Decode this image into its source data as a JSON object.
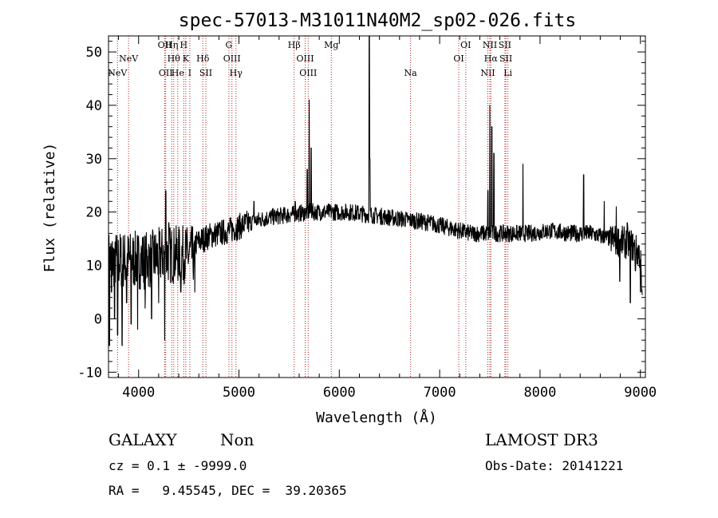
{
  "chart_data": {
    "type": "line",
    "title": "spec-57013-M31011N40M2_sp02-026.fits",
    "xlabel": "Wavelength (Å)",
    "ylabel": "Flux (relative)",
    "xlim": [
      3700,
      9050
    ],
    "ylim": [
      -11,
      53
    ],
    "xticks": [
      4000,
      5000,
      6000,
      7000,
      8000,
      9000
    ],
    "yticks": [
      -10,
      0,
      10,
      20,
      30,
      40,
      50
    ],
    "line_color": "#000000",
    "marker_color": "#b22222",
    "continuum": [
      [
        3700,
        11
      ],
      [
        3800,
        11
      ],
      [
        3950,
        11
      ],
      [
        4100,
        11
      ],
      [
        4250,
        12
      ],
      [
        4400,
        12
      ],
      [
        4550,
        12
      ],
      [
        4560,
        14
      ],
      [
        4700,
        15.5
      ],
      [
        4900,
        16.5
      ],
      [
        5100,
        18
      ],
      [
        5300,
        19
      ],
      [
        5500,
        19.5
      ],
      [
        5700,
        20
      ],
      [
        5900,
        20
      ],
      [
        6100,
        20
      ],
      [
        6300,
        19.5
      ],
      [
        6500,
        19
      ],
      [
        6700,
        18.5
      ],
      [
        6900,
        18
      ],
      [
        7100,
        17
      ],
      [
        7300,
        16
      ],
      [
        7450,
        16
      ],
      [
        7700,
        16
      ],
      [
        7900,
        16
      ],
      [
        8100,
        16.5
      ],
      [
        8300,
        16
      ],
      [
        8500,
        16
      ],
      [
        8700,
        15
      ],
      [
        8900,
        14
      ],
      [
        9000,
        12
      ],
      [
        9020,
        1
      ]
    ],
    "features": [
      [
        3710,
        -5
      ],
      [
        3730,
        5
      ],
      [
        3760,
        0
      ],
      [
        3790,
        -3
      ],
      [
        3835,
        -5
      ],
      [
        3880,
        3
      ],
      [
        3925,
        -1
      ],
      [
        3990,
        -2
      ],
      [
        4065,
        2
      ],
      [
        4130,
        0
      ],
      [
        4200,
        3
      ],
      [
        4260,
        -4
      ],
      [
        4270,
        24
      ],
      [
        4300,
        18
      ],
      [
        4420,
        5
      ],
      [
        4560,
        5
      ],
      [
        5150,
        22
      ],
      [
        5560,
        22
      ],
      [
        5680,
        28
      ],
      [
        5700,
        41
      ],
      [
        5720,
        32
      ],
      [
        6298,
        53
      ],
      [
        6305,
        30
      ],
      [
        7480,
        24
      ],
      [
        7500,
        40
      ],
      [
        7520,
        36
      ],
      [
        7540,
        31
      ],
      [
        7830,
        29
      ],
      [
        8435,
        27
      ],
      [
        8640,
        22
      ],
      [
        8760,
        21
      ],
      [
        8795,
        7
      ],
      [
        8870,
        18
      ],
      [
        8900,
        3
      ],
      [
        8950,
        9
      ],
      [
        9000,
        5
      ]
    ],
    "line_markers": [
      {
        "label": "NeV",
        "wavelength": 3790,
        "row": 2
      },
      {
        "label": "NeV",
        "wavelength": 3900,
        "row": 1
      },
      {
        "label": "OII",
        "wavelength": 4260,
        "row": 0
      },
      {
        "label": "OII",
        "wavelength": 4270,
        "row": 2
      },
      {
        "label": "Hη",
        "wavelength": 4330,
        "row": 0
      },
      {
        "label": "Hθ",
        "wavelength": 4350,
        "row": 1
      },
      {
        "label": "He",
        "wavelength": 4390,
        "row": 2
      },
      {
        "label": "H",
        "wavelength": 4450,
        "row": 0
      },
      {
        "label": "K",
        "wavelength": 4470,
        "row": 1
      },
      {
        "label": "I",
        "wavelength": 4510,
        "row": 2
      },
      {
        "label": "Hδ",
        "wavelength": 4640,
        "row": 1
      },
      {
        "label": "SII",
        "wavelength": 4670,
        "row": 2
      },
      {
        "label": "G",
        "wavelength": 4900,
        "row": 0
      },
      {
        "label": "OIII",
        "wavelength": 4930,
        "row": 1
      },
      {
        "label": "Hγ",
        "wavelength": 4970,
        "row": 2
      },
      {
        "label": "Hβ",
        "wavelength": 5550,
        "row": 0
      },
      {
        "label": "OIII",
        "wavelength": 5660,
        "row": 1
      },
      {
        "label": "OIII",
        "wavelength": 5690,
        "row": 2
      },
      {
        "label": "Mg",
        "wavelength": 5920,
        "row": 0
      },
      {
        "label": "Na",
        "wavelength": 6710,
        "row": 2
      },
      {
        "label": "OI",
        "wavelength": 7190,
        "row": 1
      },
      {
        "label": "OI",
        "wavelength": 7260,
        "row": 0
      },
      {
        "label": "NII",
        "wavelength": 7480,
        "row": 2
      },
      {
        "label": "NII",
        "wavelength": 7500,
        "row": 0
      },
      {
        "label": "Hα",
        "wavelength": 7510,
        "row": 1
      },
      {
        "label": "SII",
        "wavelength": 7650,
        "row": 0
      },
      {
        "label": "SII",
        "wavelength": 7660,
        "row": 1
      },
      {
        "label": "Li",
        "wavelength": 7680,
        "row": 2
      }
    ]
  },
  "info": {
    "object_class": "GALAXY",
    "subclass": "Non",
    "redshift_line": "cz = 0.1 ± -9999.0",
    "coords_line": "RA =   9.45545, DEC =  39.20365",
    "survey": "LAMOST DR3",
    "obs_date": "Obs-Date: 20141221"
  }
}
